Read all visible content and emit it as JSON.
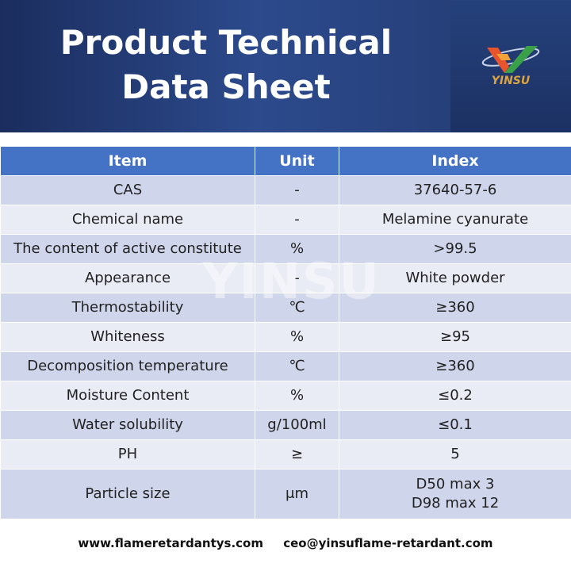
{
  "header": {
    "title": "Product Technical Data Sheet",
    "logo_text": "YINSU"
  },
  "watermark": "YINSU",
  "table": {
    "columns": [
      "Item",
      "Unit",
      "Index"
    ],
    "rows": [
      [
        "CAS",
        "-",
        "37640-57-6"
      ],
      [
        "Chemical name",
        "-",
        "Melamine cyanurate"
      ],
      [
        "The content of active constitute",
        "%",
        ">99.5"
      ],
      [
        "Appearance",
        "-",
        "White powder"
      ],
      [
        "Thermostability",
        "℃",
        "≥360"
      ],
      [
        "Whiteness",
        "%",
        "≥95"
      ],
      [
        "Decomposition temperature",
        "℃",
        "≥360"
      ],
      [
        "Moisture Content",
        "%",
        "≤0.2"
      ],
      [
        "Water solubility",
        "g/100ml",
        "≤0.1"
      ],
      [
        "PH",
        "≥",
        "5"
      ],
      [
        "Particle size",
        "μm",
        [
          "D50 max 3",
          "D98 max 12"
        ]
      ]
    ]
  },
  "footer": {
    "website": "www.flameretardantys.com",
    "email": "ceo@yinsuflame-retardant.com"
  }
}
